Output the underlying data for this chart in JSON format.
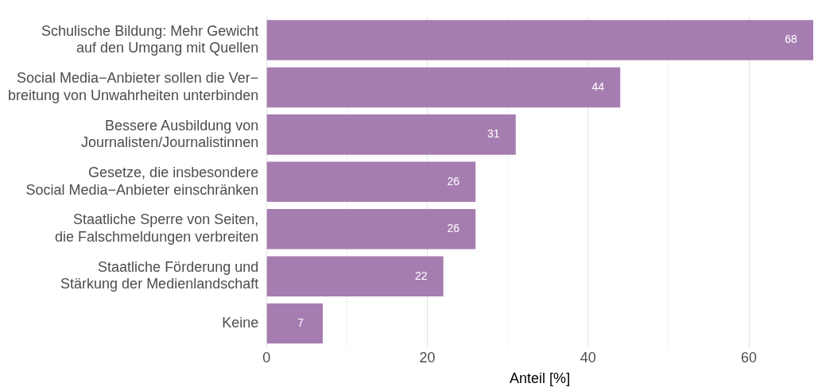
{
  "chart_data": {
    "type": "bar",
    "orientation": "horizontal",
    "xlabel": "Anteil [%]",
    "categories": [
      "Schulische Bildung: Mehr Gewicht\nauf den Umgang mit Quellen",
      "Social Media−Anbieter sollen die Ver−\nbreitung von Unwahrheiten unterbinden",
      "Bessere Ausbildung von\nJournalisten/Journalistinnen",
      "Gesetze, die insbesondere\nSocial Media−Anbieter einschränken",
      "Staatliche Sperre von Seiten,\ndie Falschmeldungen verbreiten",
      "Staatliche Förderung und\nStärkung der Medienlandschaft",
      "Keine"
    ],
    "values": [
      68,
      44,
      31,
      26,
      26,
      22,
      7
    ],
    "color": "#a67db0",
    "xlim": [
      0,
      68
    ],
    "xticks": [
      0,
      {
        "value": 10,
        "label": null
      },
      20,
      {
        "value": 30,
        "label": null
      },
      40,
      {
        "value": 50,
        "label": null
      },
      60
    ],
    "grid": "x",
    "legend": false,
    "data_labels": true
  }
}
